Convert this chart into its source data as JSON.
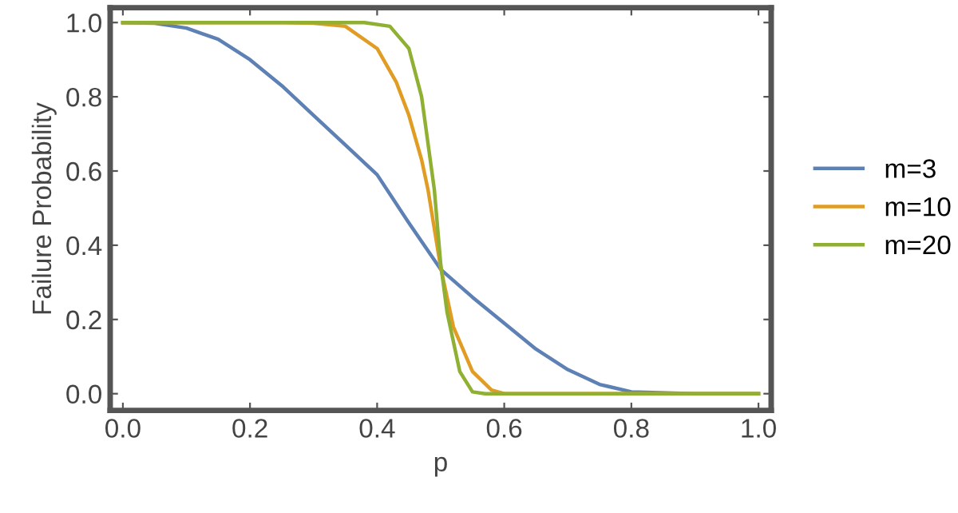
{
  "chart_data": {
    "type": "line",
    "xlabel": "p",
    "ylabel": "Failure Probability",
    "xlim": [
      -0.02,
      1.02
    ],
    "ylim": [
      -0.045,
      1.04
    ],
    "xticks": [
      {
        "value": 0,
        "label": "0.0"
      },
      0.2,
      0.4,
      0.6,
      0.8,
      {
        "value": 1,
        "label": "1.0"
      }
    ],
    "yticks": [
      {
        "value": 0,
        "label": "0.0"
      },
      0.2,
      0.4,
      0.6,
      0.8,
      {
        "value": 1,
        "label": "1.0"
      }
    ],
    "grid": false,
    "legend": "right",
    "marker": "none",
    "line_style": "solid",
    "series": [
      {
        "name": "m=3",
        "color": "#5e81b5",
        "x": [
          0,
          0.05,
          0.1,
          0.15,
          0.2,
          0.25,
          0.3,
          0.35,
          0.4,
          0.45,
          0.5,
          0.55,
          0.6,
          0.65,
          0.7,
          0.75,
          0.8,
          0.9,
          1.0
        ],
        "values": [
          1,
          0.998,
          0.985,
          0.955,
          0.9,
          0.83,
          0.75,
          0.67,
          0.59,
          0.46,
          0.335,
          0.26,
          0.19,
          0.12,
          0.065,
          0.025,
          0.005,
          0,
          0
        ]
      },
      {
        "name": "m=10",
        "color": "#e19c24",
        "x": [
          0,
          0.25,
          0.3,
          0.35,
          0.4,
          0.43,
          0.45,
          0.47,
          0.48,
          0.5,
          0.52,
          0.55,
          0.58,
          0.6,
          1.0
        ],
        "values": [
          1,
          1,
          0.998,
          0.99,
          0.93,
          0.84,
          0.75,
          0.63,
          0.55,
          0.34,
          0.18,
          0.06,
          0.01,
          0,
          0
        ]
      },
      {
        "name": "m=20",
        "color": "#8fb032",
        "x": [
          0,
          0.38,
          0.42,
          0.45,
          0.47,
          0.49,
          0.5,
          0.51,
          0.53,
          0.55,
          0.57,
          1.0
        ],
        "values": [
          1,
          1,
          0.99,
          0.93,
          0.8,
          0.55,
          0.35,
          0.22,
          0.06,
          0.005,
          0,
          0
        ]
      }
    ]
  }
}
